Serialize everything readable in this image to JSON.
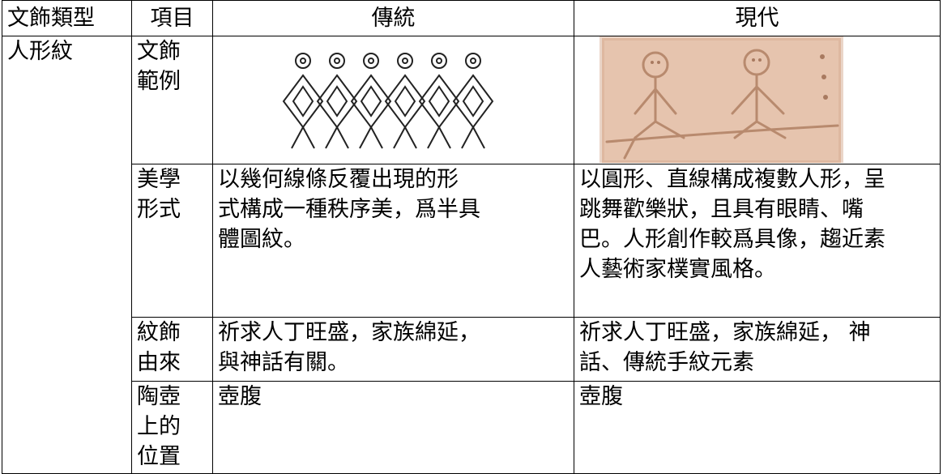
{
  "table": {
    "header": [
      "文飾類型",
      "項目",
      "傳統",
      "現代"
    ],
    "group": "人形紋",
    "rows": [
      {
        "item": [
          "文飾",
          "範例"
        ]
      },
      {
        "item": [
          "美學",
          "形式"
        ],
        "traditional": [
          "以幾何線條反覆出現的形",
          "式構成一種秩序美，爲半具",
          "體圖紋。"
        ],
        "modern": [
          "以圓形、直線構成複數人形，呈",
          "跳舞歡樂狀，且具有眼睛、嘴",
          "巴。人形創作較爲具像，趨近素",
          "人藝術家樸實風格。"
        ]
      },
      {
        "item": [
          "紋飾",
          "由來"
        ],
        "traditional": [
          "祈求人丁旺盛，家族綿延，",
          "與神話有關。"
        ],
        "modern": [
          "祈求人丁旺盛，家族綿延， 神",
          "話、傳統手紋元素"
        ]
      },
      {
        "item": [
          "陶壺",
          "上的",
          "位置"
        ],
        "traditional": [
          "壺腹"
        ],
        "modern": [
          "壺腹"
        ]
      }
    ]
  }
}
